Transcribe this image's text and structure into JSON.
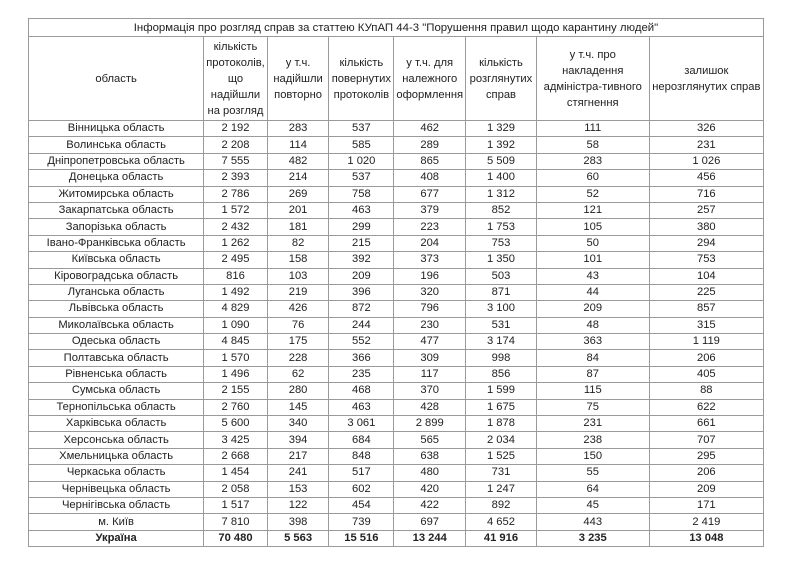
{
  "title": "Інформація про розгляд справ за статтею КУпАП 44-3 \"Порушення правил щодо карантину людей\"",
  "columns": [
    "область",
    "кількість протоколів, що надійшли на розгляд",
    "у т.ч. надійшли повторно",
    "кількість повернутих протоколів",
    "у т.ч. для належного оформлення",
    "кількість розглянутих справ",
    "у т.ч. про накладення адміністра-тивного стягнення",
    "залишок нерозглянутих справ"
  ],
  "rows": [
    [
      "Вінницька область",
      "2 192",
      "283",
      "537",
      "462",
      "1 329",
      "111",
      "326"
    ],
    [
      "Волинська область",
      "2 208",
      "114",
      "585",
      "289",
      "1 392",
      "58",
      "231"
    ],
    [
      "Дніпропетровська область",
      "7 555",
      "482",
      "1 020",
      "865",
      "5 509",
      "283",
      "1 026"
    ],
    [
      "Донецька область",
      "2 393",
      "214",
      "537",
      "408",
      "1 400",
      "60",
      "456"
    ],
    [
      "Житомирська область",
      "2 786",
      "269",
      "758",
      "677",
      "1 312",
      "52",
      "716"
    ],
    [
      "Закарпатська область",
      "1 572",
      "201",
      "463",
      "379",
      "852",
      "121",
      "257"
    ],
    [
      "Запорізька область",
      "2 432",
      "181",
      "299",
      "223",
      "1 753",
      "105",
      "380"
    ],
    [
      "Івано-Франківська область",
      "1 262",
      "82",
      "215",
      "204",
      "753",
      "50",
      "294"
    ],
    [
      "Київська область",
      "2 495",
      "158",
      "392",
      "373",
      "1 350",
      "101",
      "753"
    ],
    [
      "Кіровоградська область",
      "816",
      "103",
      "209",
      "196",
      "503",
      "43",
      "104"
    ],
    [
      "Луганська область",
      "1 492",
      "219",
      "396",
      "320",
      "871",
      "44",
      "225"
    ],
    [
      "Львівська область",
      "4 829",
      "426",
      "872",
      "796",
      "3 100",
      "209",
      "857"
    ],
    [
      "Миколаївська область",
      "1 090",
      "76",
      "244",
      "230",
      "531",
      "48",
      "315"
    ],
    [
      "Одеська область",
      "4 845",
      "175",
      "552",
      "477",
      "3 174",
      "363",
      "1 119"
    ],
    [
      "Полтавська область",
      "1 570",
      "228",
      "366",
      "309",
      "998",
      "84",
      "206"
    ],
    [
      "Рівненська область",
      "1 496",
      "62",
      "235",
      "117",
      "856",
      "87",
      "405"
    ],
    [
      "Сумська область",
      "2 155",
      "280",
      "468",
      "370",
      "1 599",
      "115",
      "88"
    ],
    [
      "Тернопільська область",
      "2 760",
      "145",
      "463",
      "428",
      "1 675",
      "75",
      "622"
    ],
    [
      "Харківська область",
      "5 600",
      "340",
      "3 061",
      "2 899",
      "1 878",
      "231",
      "661"
    ],
    [
      "Херсонська область",
      "3 425",
      "394",
      "684",
      "565",
      "2 034",
      "238",
      "707"
    ],
    [
      "Хмельницька область",
      "2 668",
      "217",
      "848",
      "638",
      "1 525",
      "150",
      "295"
    ],
    [
      "Черкаська область",
      "1 454",
      "241",
      "517",
      "480",
      "731",
      "55",
      "206"
    ],
    [
      "Чернівецька область",
      "2 058",
      "153",
      "602",
      "420",
      "1 247",
      "64",
      "209"
    ],
    [
      "Чернігівська область",
      "1 517",
      "122",
      "454",
      "422",
      "892",
      "45",
      "171"
    ],
    [
      "м. Київ",
      "7 810",
      "398",
      "739",
      "697",
      "4 652",
      "443",
      "2 419"
    ]
  ],
  "total": [
    "Україна",
    "70 480",
    "5 563",
    "15 516",
    "13 244",
    "41 916",
    "3 235",
    "13 048"
  ]
}
